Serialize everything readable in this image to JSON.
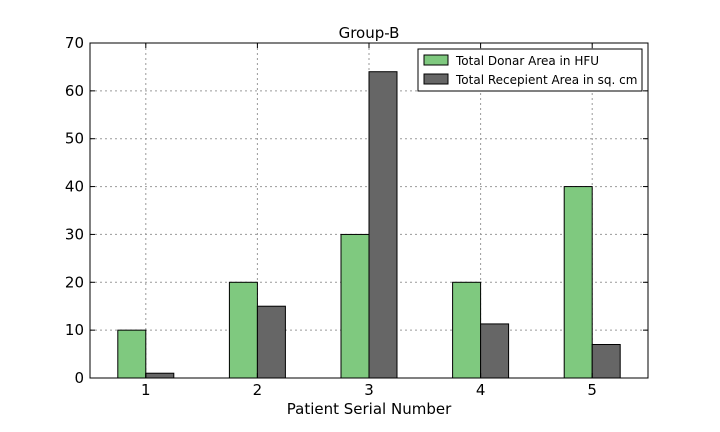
{
  "chart_data": {
    "type": "bar",
    "title": "Group-B",
    "xlabel": "Patient Serial Number",
    "ylabel": "",
    "categories": [
      "1",
      "2",
      "3",
      "4",
      "5"
    ],
    "ylim": [
      0,
      70
    ],
    "yticks": [
      0,
      10,
      20,
      30,
      40,
      50,
      60,
      70
    ],
    "grid": true,
    "legend_position": "top-right",
    "series": [
      {
        "name": "Total Donar Area in HFU",
        "color": "#7fc97f",
        "values": [
          10,
          20,
          30,
          20,
          40
        ]
      },
      {
        "name": "Total Recepient Area in sq. cm",
        "color": "#666666",
        "values": [
          1,
          15,
          64,
          11.3,
          7
        ]
      }
    ]
  }
}
